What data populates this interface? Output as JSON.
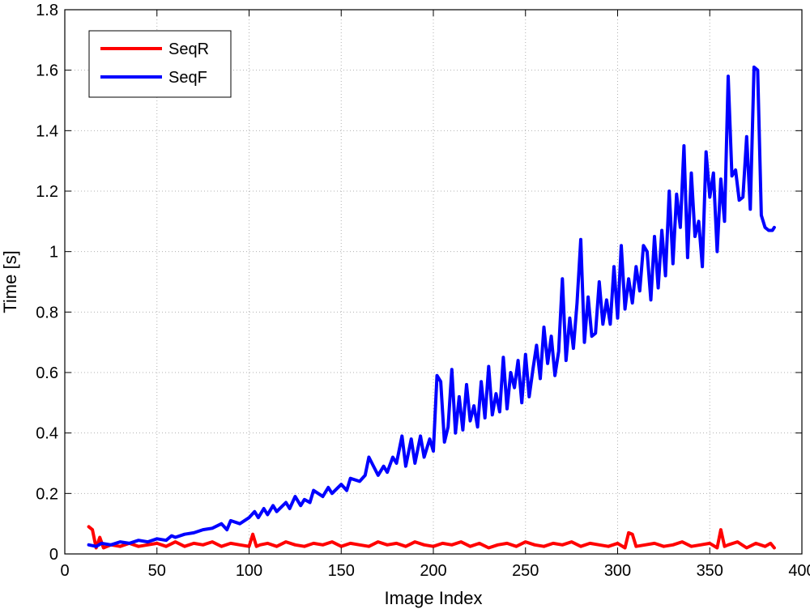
{
  "chart_data": {
    "type": "line",
    "title": "",
    "xlabel": "Image Index",
    "ylabel": "Time [s]",
    "xlim": [
      0,
      400
    ],
    "ylim": [
      0,
      1.8
    ],
    "xticks": [
      "0",
      "50",
      "100",
      "150",
      "200",
      "250",
      "300",
      "350",
      "400"
    ],
    "yticks": [
      "0",
      "0.2",
      "0.4",
      "0.6",
      "0.8",
      "1",
      "1.2",
      "1.4",
      "1.6",
      "1.8"
    ],
    "grid": true,
    "legend_position": "top-left",
    "series": [
      {
        "name": "SeqR",
        "color": "#ff0000",
        "x": [
          13,
          15,
          17,
          19,
          21,
          25,
          30,
          35,
          40,
          45,
          50,
          55,
          60,
          65,
          70,
          75,
          80,
          85,
          90,
          95,
          100,
          102,
          104,
          106,
          110,
          115,
          120,
          125,
          130,
          135,
          140,
          145,
          150,
          155,
          160,
          165,
          170,
          175,
          180,
          185,
          190,
          195,
          200,
          205,
          210,
          215,
          220,
          225,
          230,
          235,
          240,
          245,
          250,
          255,
          260,
          265,
          270,
          275,
          280,
          285,
          290,
          295,
          300,
          304,
          306,
          308,
          310,
          315,
          320,
          325,
          330,
          335,
          340,
          345,
          350,
          354,
          356,
          358,
          360,
          365,
          370,
          375,
          380,
          383,
          385
        ],
        "y": [
          0.09,
          0.08,
          0.02,
          0.055,
          0.02,
          0.03,
          0.025,
          0.035,
          0.025,
          0.03,
          0.035,
          0.025,
          0.04,
          0.025,
          0.035,
          0.03,
          0.04,
          0.025,
          0.035,
          0.03,
          0.025,
          0.065,
          0.025,
          0.03,
          0.035,
          0.025,
          0.04,
          0.03,
          0.025,
          0.035,
          0.03,
          0.04,
          0.025,
          0.035,
          0.03,
          0.025,
          0.04,
          0.03,
          0.035,
          0.025,
          0.04,
          0.03,
          0.025,
          0.035,
          0.03,
          0.04,
          0.025,
          0.035,
          0.02,
          0.03,
          0.035,
          0.025,
          0.04,
          0.03,
          0.025,
          0.035,
          0.03,
          0.04,
          0.025,
          0.035,
          0.03,
          0.025,
          0.035,
          0.02,
          0.07,
          0.065,
          0.025,
          0.03,
          0.035,
          0.025,
          0.03,
          0.04,
          0.025,
          0.03,
          0.035,
          0.02,
          0.08,
          0.025,
          0.03,
          0.04,
          0.02,
          0.035,
          0.025,
          0.035,
          0.02
        ]
      },
      {
        "name": "SeqF",
        "color": "#0000ff",
        "x": [
          13,
          17,
          20,
          25,
          30,
          35,
          40,
          45,
          50,
          55,
          58,
          60,
          65,
          70,
          75,
          80,
          85,
          88,
          90,
          95,
          100,
          103,
          105,
          108,
          110,
          113,
          115,
          120,
          122,
          125,
          128,
          130,
          133,
          135,
          140,
          143,
          145,
          150,
          153,
          155,
          160,
          163,
          165,
          170,
          173,
          175,
          178,
          180,
          183,
          185,
          188,
          190,
          193,
          195,
          198,
          200,
          202,
          204,
          206,
          208,
          210,
          212,
          214,
          216,
          218,
          220,
          222,
          224,
          226,
          228,
          230,
          232,
          234,
          236,
          238,
          240,
          242,
          244,
          246,
          248,
          250,
          252,
          254,
          256,
          258,
          260,
          262,
          264,
          266,
          268,
          270,
          272,
          274,
          276,
          278,
          280,
          282,
          284,
          286,
          288,
          290,
          292,
          294,
          296,
          298,
          300,
          302,
          304,
          306,
          308,
          310,
          312,
          314,
          316,
          318,
          320,
          322,
          324,
          326,
          328,
          330,
          332,
          334,
          336,
          338,
          340,
          342,
          344,
          346,
          348,
          350,
          352,
          354,
          356,
          358,
          360,
          362,
          364,
          366,
          368,
          370,
          372,
          374,
          376,
          378,
          380,
          382,
          384,
          385
        ],
        "y": [
          0.03,
          0.025,
          0.035,
          0.03,
          0.04,
          0.035,
          0.045,
          0.04,
          0.05,
          0.045,
          0.06,
          0.055,
          0.065,
          0.07,
          0.08,
          0.085,
          0.1,
          0.08,
          0.11,
          0.1,
          0.12,
          0.14,
          0.12,
          0.15,
          0.13,
          0.16,
          0.14,
          0.17,
          0.15,
          0.19,
          0.16,
          0.18,
          0.17,
          0.21,
          0.19,
          0.22,
          0.2,
          0.23,
          0.21,
          0.25,
          0.24,
          0.26,
          0.32,
          0.26,
          0.29,
          0.27,
          0.32,
          0.3,
          0.39,
          0.29,
          0.38,
          0.3,
          0.39,
          0.32,
          0.38,
          0.34,
          0.59,
          0.57,
          0.37,
          0.42,
          0.61,
          0.4,
          0.52,
          0.41,
          0.56,
          0.44,
          0.49,
          0.42,
          0.57,
          0.45,
          0.62,
          0.46,
          0.53,
          0.47,
          0.65,
          0.48,
          0.6,
          0.55,
          0.64,
          0.5,
          0.66,
          0.52,
          0.61,
          0.69,
          0.58,
          0.75,
          0.63,
          0.72,
          0.59,
          0.67,
          0.91,
          0.64,
          0.78,
          0.68,
          0.83,
          1.04,
          0.7,
          0.85,
          0.72,
          0.73,
          0.9,
          0.76,
          0.84,
          0.76,
          0.95,
          0.78,
          1.02,
          0.81,
          0.91,
          0.83,
          0.95,
          0.87,
          1.02,
          1.0,
          0.84,
          1.05,
          0.88,
          1.07,
          0.92,
          1.2,
          0.96,
          1.19,
          1.08,
          1.35,
          0.98,
          1.26,
          1.05,
          1.1,
          0.95,
          1.33,
          1.18,
          1.26,
          1.0,
          1.24,
          1.1,
          1.58,
          1.25,
          1.27,
          1.17,
          1.18,
          1.38,
          1.14,
          1.61,
          1.6,
          1.12,
          1.08,
          1.07,
          1.07,
          1.08
        ]
      }
    ]
  }
}
